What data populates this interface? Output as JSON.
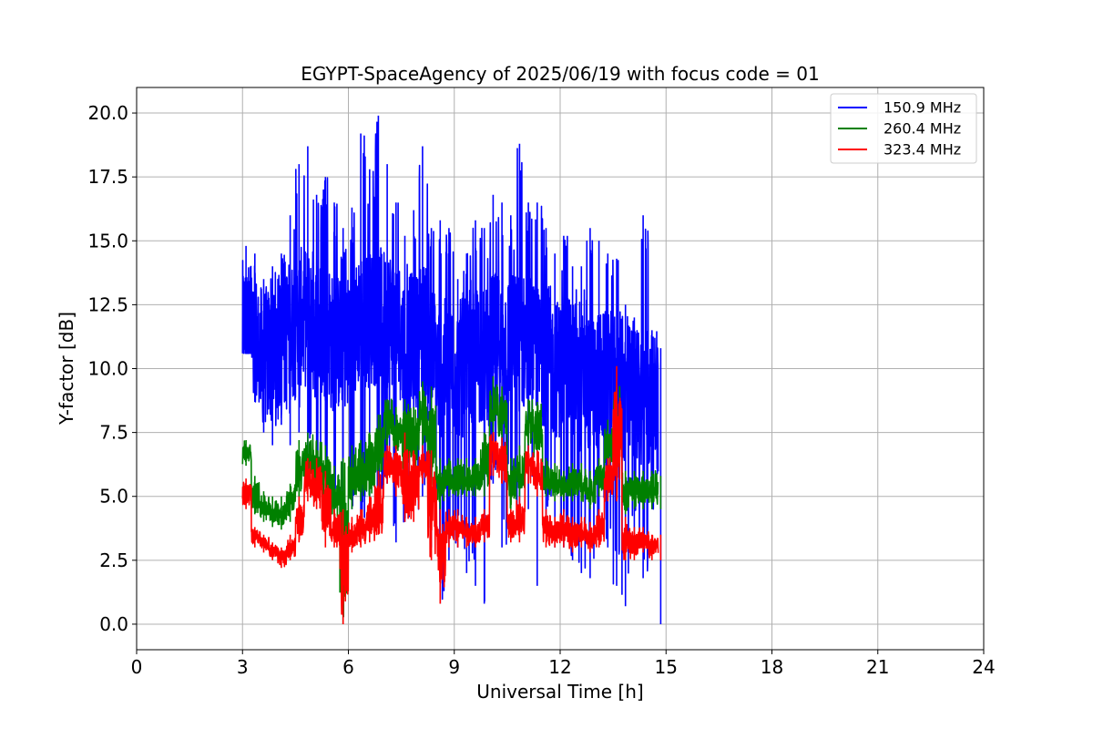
{
  "chart_data": {
    "type": "line",
    "title": "EGYPT-SpaceAgency of 2025/06/19 with focus code = 01",
    "xlabel": "Universal Time [h]",
    "ylabel": "Y-factor [dB]",
    "xlim": [
      0,
      24
    ],
    "ylim": [
      -1.0,
      21.0
    ],
    "xticks": [
      0,
      3,
      6,
      9,
      12,
      15,
      18,
      21,
      24
    ],
    "xtick_labels": [
      "0",
      "3",
      "6",
      "9",
      "12",
      "15",
      "18",
      "21",
      "24"
    ],
    "yticks": [
      0.0,
      2.5,
      5.0,
      7.5,
      10.0,
      12.5,
      15.0,
      17.5,
      20.0
    ],
    "ytick_labels": [
      "0.0",
      "2.5",
      "5.0",
      "7.5",
      "10.0",
      "12.5",
      "15.0",
      "17.5",
      "20.0"
    ],
    "grid": true,
    "legend_position": "top-right",
    "series": [
      {
        "name": "150.9 MHz",
        "color": "#0000ff",
        "x": [
          3.0,
          3.25,
          3.5,
          3.75,
          4.0,
          4.25,
          4.5,
          4.75,
          5.0,
          5.25,
          5.5,
          5.75,
          6.0,
          6.25,
          6.5,
          6.75,
          7.0,
          7.25,
          7.5,
          7.75,
          8.0,
          8.25,
          8.5,
          8.75,
          9.0,
          9.25,
          9.5,
          9.75,
          10.0,
          10.25,
          10.5,
          10.75,
          11.0,
          11.25,
          11.5,
          11.75,
          12.0,
          12.25,
          12.5,
          12.75,
          13.0,
          13.25,
          13.5,
          13.75,
          14.0,
          14.25,
          14.5,
          14.75
        ],
        "low": [
          10.6,
          8.7,
          7.5,
          7.0,
          7.8,
          7.0,
          7.5,
          6.5,
          5.2,
          5.0,
          4.5,
          3.8,
          4.5,
          4.0,
          5.0,
          4.5,
          5.5,
          3.2,
          4.0,
          4.5,
          5.0,
          3.0,
          0.8,
          2.5,
          3.0,
          2.0,
          1.5,
          0.8,
          5.5,
          3.0,
          5.0,
          3.5,
          4.5,
          1.5,
          4.0,
          3.0,
          3.0,
          2.5,
          2.0,
          1.8,
          3.5,
          3.0,
          1.5,
          0.7,
          3.0,
          1.8,
          4.5,
          0.0
        ],
        "high": [
          14.8,
          14.5,
          13.5,
          14.0,
          14.5,
          16.0,
          18.0,
          18.7,
          16.8,
          17.5,
          16.5,
          15.5,
          16.3,
          19.2,
          17.8,
          19.9,
          18.0,
          16.5,
          15.2,
          16.2,
          18.7,
          15.5,
          15.8,
          15.5,
          13.5,
          14.5,
          15.8,
          15.5,
          16.8,
          16.5,
          16.0,
          18.8,
          16.5,
          16.5,
          15.5,
          14.5,
          15.2,
          14.0,
          14.0,
          15.5,
          15.0,
          14.5,
          14.3,
          12.5,
          12.0,
          16.0,
          11.5,
          10.8
        ],
        "level": [
          11.5,
          11.0,
          10.5,
          10.5,
          11.0,
          11.5,
          12.0,
          12.0,
          11.5,
          11.5,
          11.0,
          11.0,
          11.5,
          12.0,
          12.0,
          12.0,
          12.0,
          11.5,
          11.0,
          11.0,
          11.5,
          10.5,
          10.0,
          10.0,
          10.0,
          10.0,
          10.5,
          10.5,
          11.0,
          11.0,
          11.0,
          11.0,
          11.0,
          10.5,
          10.5,
          10.0,
          10.0,
          10.0,
          9.5,
          9.5,
          9.5,
          9.5,
          9.5,
          9.0,
          9.0,
          9.0,
          8.5,
          8.5
        ]
      },
      {
        "name": "260.4 MHz",
        "color": "#008000",
        "x": [
          3.0,
          3.25,
          3.5,
          3.75,
          4.0,
          4.25,
          4.5,
          4.75,
          5.0,
          5.25,
          5.5,
          5.75,
          6.0,
          6.25,
          6.5,
          6.75,
          7.0,
          7.25,
          7.5,
          7.75,
          8.0,
          8.25,
          8.5,
          8.75,
          9.0,
          9.25,
          9.5,
          9.75,
          10.0,
          10.25,
          10.5,
          10.75,
          11.0,
          11.25,
          11.5,
          11.75,
          12.0,
          12.25,
          12.5,
          12.75,
          13.0,
          13.25,
          13.5,
          13.75,
          14.0,
          14.25,
          14.5,
          14.75
        ],
        "low": [
          6.2,
          4.3,
          4.0,
          3.8,
          3.7,
          4.0,
          4.8,
          5.5,
          5.2,
          4.0,
          4.2,
          0.0,
          4.5,
          4.8,
          5.0,
          5.5,
          7.0,
          6.5,
          6.0,
          6.0,
          7.0,
          4.5,
          4.5,
          5.0,
          5.0,
          5.0,
          5.0,
          5.0,
          7.5,
          7.0,
          4.5,
          5.0,
          7.0,
          6.5,
          5.0,
          4.8,
          4.8,
          4.8,
          4.8,
          4.5,
          5.0,
          6.0,
          6.0,
          4.3,
          4.5,
          4.5,
          4.5,
          4.5
        ],
        "high": [
          7.2,
          5.8,
          5.2,
          5.0,
          5.0,
          5.5,
          7.2,
          7.5,
          7.2,
          7.0,
          6.2,
          6.5,
          7.0,
          7.2,
          7.5,
          8.2,
          8.8,
          8.5,
          8.8,
          8.5,
          9.5,
          9.3,
          6.5,
          6.5,
          6.5,
          6.5,
          6.5,
          7.5,
          9.7,
          9.3,
          6.5,
          7.0,
          8.8,
          8.7,
          6.5,
          6.3,
          6.0,
          6.3,
          6.3,
          6.0,
          6.5,
          8.0,
          9.3,
          6.0,
          6.0,
          6.0,
          6.0,
          5.8
        ]
      },
      {
        "name": "323.4 MHz",
        "color": "#ff0000",
        "x": [
          3.0,
          3.25,
          3.5,
          3.75,
          4.0,
          4.25,
          4.5,
          4.75,
          5.0,
          5.25,
          5.5,
          5.75,
          6.0,
          6.25,
          6.5,
          6.75,
          7.0,
          7.25,
          7.5,
          7.75,
          8.0,
          8.25,
          8.5,
          8.75,
          9.0,
          9.25,
          9.5,
          9.75,
          10.0,
          10.25,
          10.5,
          10.75,
          11.0,
          11.25,
          11.5,
          11.75,
          12.0,
          12.25,
          12.5,
          12.75,
          13.0,
          13.25,
          13.5,
          13.75,
          14.0,
          14.25,
          14.5,
          14.75
        ],
        "low": [
          4.5,
          3.0,
          2.8,
          2.5,
          2.2,
          2.5,
          3.2,
          4.8,
          4.5,
          3.0,
          3.0,
          0.0,
          2.8,
          3.0,
          3.2,
          3.5,
          5.5,
          5.0,
          4.0,
          4.0,
          5.5,
          2.5,
          0.8,
          3.0,
          3.0,
          3.0,
          3.0,
          3.2,
          5.8,
          5.5,
          3.2,
          3.2,
          5.5,
          5.0,
          3.0,
          3.0,
          3.0,
          2.8,
          3.0,
          2.8,
          3.0,
          4.8,
          4.8,
          2.5,
          2.5,
          2.8,
          2.5,
          2.5
        ],
        "high": [
          5.7,
          3.8,
          3.5,
          3.2,
          3.0,
          3.5,
          5.0,
          6.5,
          6.5,
          6.0,
          4.5,
          4.5,
          4.2,
          4.5,
          5.0,
          6.0,
          7.0,
          7.0,
          7.5,
          6.8,
          7.0,
          6.8,
          4.5,
          4.5,
          4.5,
          4.2,
          4.2,
          4.5,
          7.5,
          7.3,
          4.5,
          5.0,
          7.0,
          6.8,
          4.5,
          4.2,
          4.5,
          4.2,
          4.2,
          4.0,
          4.5,
          6.5,
          10.1,
          4.2,
          3.8,
          3.8,
          3.5,
          3.5
        ]
      }
    ]
  }
}
